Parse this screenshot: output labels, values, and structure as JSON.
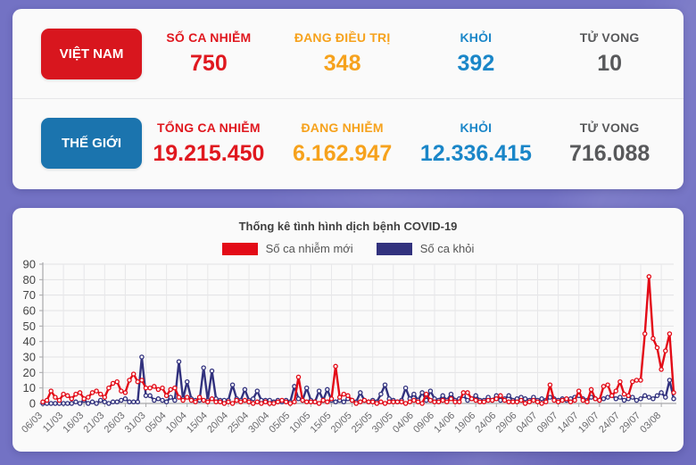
{
  "summary": {
    "rows": [
      {
        "id": "vietnam",
        "button_label": "VIỆT NAM",
        "button_color": "#d8161e",
        "stats": [
          {
            "label": "SỐ CA NHIỄM",
            "value": "750",
            "color": "#e0181f"
          },
          {
            "label": "ĐANG ĐIỀU TRỊ",
            "value": "348",
            "color": "#f6a21d"
          },
          {
            "label": "KHỎI",
            "value": "392",
            "color": "#1a86c8"
          },
          {
            "label": "TỬ VONG",
            "value": "10",
            "color": "#58595b"
          }
        ]
      },
      {
        "id": "world",
        "button_label": "THẾ GIỚI",
        "button_color": "#1b74ae",
        "stats": [
          {
            "label": "TỔNG CA NHIỄM",
            "value": "19.215.450",
            "color": "#e0181f"
          },
          {
            "label": "ĐANG NHIỄM",
            "value": "6.162.947",
            "color": "#f6a21d"
          },
          {
            "label": "KHỎI",
            "value": "12.336.415",
            "color": "#1a86c8"
          },
          {
            "label": "TỬ VONG",
            "value": "716.088",
            "color": "#58595b"
          }
        ]
      }
    ]
  },
  "chart": {
    "title": "Thống kê tình hình dịch bệnh COVID-19"
  },
  "chart_data": {
    "type": "line",
    "title": "Thống kê tình hình dịch bệnh COVID-19",
    "x_start": "06/03",
    "x_tick_every_days": 5,
    "x_tick_labels": [
      "06/03",
      "11/03",
      "16/03",
      "21/03",
      "26/03",
      "31/03",
      "05/04",
      "10/04",
      "15/04",
      "20/04",
      "25/04",
      "30/04",
      "05/05",
      "10/05",
      "15/05",
      "20/05",
      "25/05",
      "30/05",
      "04/06",
      "09/06",
      "14/06",
      "19/06",
      "24/06",
      "29/06",
      "04/07",
      "09/07",
      "14/07",
      "19/07",
      "24/07",
      "29/07",
      "03/08"
    ],
    "ylim": [
      0,
      90
    ],
    "y_ticks": [
      0,
      10,
      20,
      30,
      40,
      50,
      60,
      70,
      80,
      90
    ],
    "grid": true,
    "legend_position": "top",
    "series": [
      {
        "name": "Số ca nhiễm mới",
        "color": "#e30b17",
        "values": [
          1,
          2,
          8,
          4,
          2,
          6,
          5,
          3,
          6,
          7,
          3,
          4,
          7,
          8,
          6,
          4,
          10,
          13,
          14,
          8,
          7,
          15,
          19,
          14,
          15,
          10,
          10,
          11,
          9,
          10,
          5,
          9,
          10,
          4,
          2,
          4,
          2,
          1,
          4,
          2,
          1,
          3,
          1,
          1,
          0,
          1,
          0,
          2,
          1,
          2,
          1,
          0,
          1,
          0,
          1,
          0,
          0,
          1,
          2,
          1,
          0,
          1,
          17,
          2,
          1,
          1,
          1,
          0,
          2,
          1,
          3,
          24,
          4,
          6,
          5,
          2,
          0,
          1,
          2,
          1,
          1,
          0,
          1,
          0,
          1,
          1,
          1,
          1,
          0,
          1,
          2,
          1,
          0,
          6,
          2,
          1,
          1,
          2,
          1,
          3,
          1,
          1,
          7,
          7,
          3,
          2,
          1,
          1,
          2,
          2,
          3,
          5,
          2,
          1,
          1,
          1,
          2,
          0,
          1,
          2,
          1,
          0,
          1,
          12,
          2,
          1,
          2,
          3,
          1,
          2,
          8,
          2,
          1,
          9,
          3,
          2,
          11,
          12,
          5,
          8,
          14,
          6,
          5,
          14,
          15,
          15,
          45,
          82,
          42,
          36,
          22,
          34,
          45,
          7
        ]
      },
      {
        "name": "Số ca khỏi",
        "color": "#32327e",
        "values": [
          0,
          0,
          0,
          0,
          0,
          0,
          0,
          0,
          1,
          0,
          2,
          0,
          1,
          0,
          2,
          1,
          0,
          1,
          1,
          2,
          3,
          1,
          1,
          1,
          30,
          5,
          5,
          2,
          3,
          2,
          1,
          4,
          2,
          27,
          3,
          14,
          3,
          2,
          2,
          23,
          2,
          21,
          3,
          2,
          2,
          2,
          12,
          3,
          2,
          9,
          2,
          3,
          8,
          2,
          2,
          2,
          1,
          2,
          1,
          2,
          1,
          11,
          3,
          2,
          10,
          2,
          1,
          8,
          2,
          9,
          2,
          1,
          2,
          1,
          3,
          2,
          1,
          7,
          2,
          1,
          2,
          1,
          6,
          12,
          3,
          2,
          1,
          2,
          10,
          3,
          6,
          2,
          7,
          2,
          8,
          3,
          2,
          5,
          2,
          6,
          2,
          3,
          5,
          2,
          3,
          5,
          2,
          2,
          4,
          2,
          5,
          2,
          3,
          5,
          2,
          3,
          4,
          3,
          2,
          4,
          2,
          3,
          2,
          4,
          3,
          2,
          3,
          2,
          3,
          4,
          5,
          3,
          2,
          4,
          3,
          2,
          3,
          4,
          5,
          3,
          4,
          2,
          3,
          4,
          2,
          3,
          5,
          4,
          3,
          5,
          7,
          4,
          15,
          3
        ]
      }
    ]
  }
}
